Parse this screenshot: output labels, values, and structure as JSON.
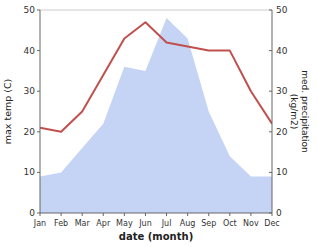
{
  "chart_data": {
    "type": "line",
    "categories": [
      "Jan",
      "Feb",
      "Mar",
      "Apr",
      "May",
      "Jun",
      "Jul",
      "Aug",
      "Sep",
      "Oct",
      "Nov",
      "Dec"
    ],
    "series": [
      {
        "type": "area",
        "axis": "y2",
        "color": "#c5d4f5",
        "values": [
          9,
          10,
          16,
          22,
          36,
          35,
          48,
          43,
          25,
          14,
          9,
          9
        ]
      },
      {
        "type": "line",
        "color": "#c0504d",
        "values": [
          21,
          20,
          25,
          34,
          43,
          47,
          42,
          41,
          40,
          40,
          30,
          22
        ]
      }
    ],
    "xlabel": "date (month)",
    "ylabel": "max temp (C)",
    "y2label": "med. precipitation\n(kg/m2)",
    "ylim": [
      0,
      50
    ],
    "yticks": [
      0,
      10,
      20,
      30,
      40,
      50
    ],
    "y2lim": [
      0,
      50
    ],
    "y2ticks": [
      0,
      10,
      20,
      30,
      40,
      50
    ],
    "grid": false
  }
}
